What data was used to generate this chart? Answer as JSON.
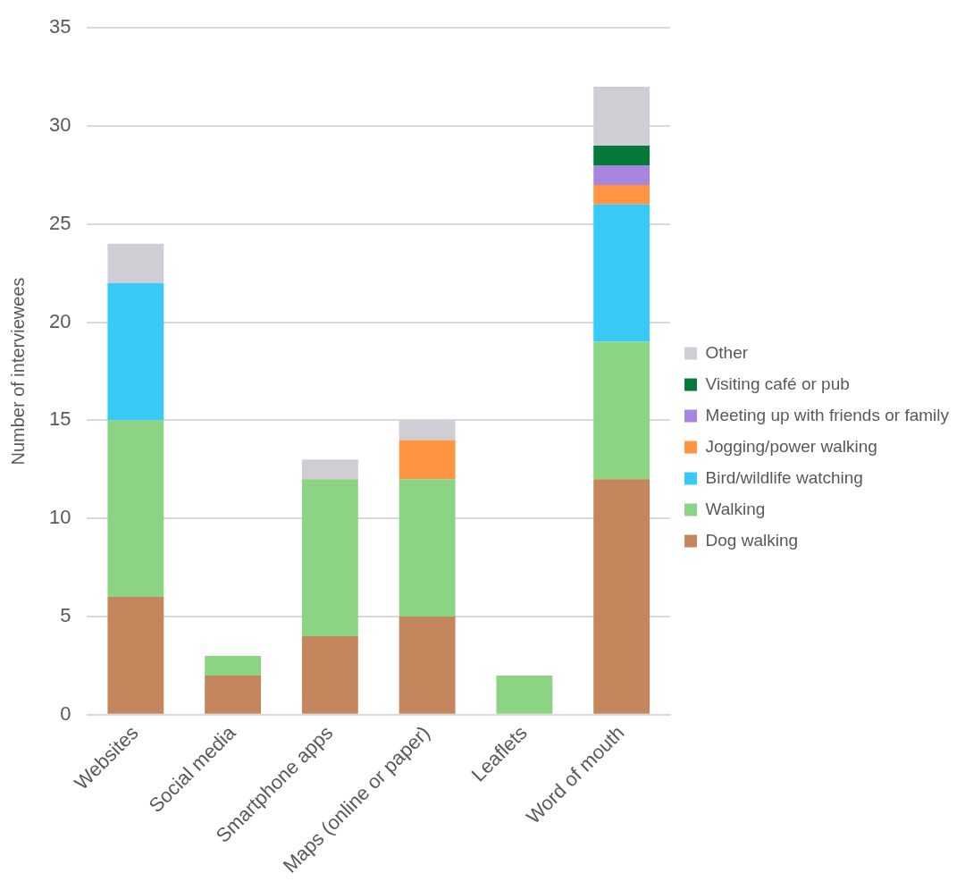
{
  "chart_data": {
    "type": "bar",
    "stacked": true,
    "ylabel": "Number of interviewees",
    "categories": [
      "Websites",
      "Social media",
      "Smartphone apps",
      "Maps (online or paper)",
      "Leaflets",
      "Word of mouth"
    ],
    "series": [
      {
        "name": "Dog walking",
        "color": "#c4865c",
        "values": [
          6,
          2,
          4,
          5,
          null,
          12
        ]
      },
      {
        "name": "Walking",
        "color": "#8dd384",
        "values": [
          9,
          1,
          8,
          7,
          2,
          7
        ]
      },
      {
        "name": "Bird/wildlife watching",
        "color": "#38c9f7",
        "values": [
          7,
          null,
          null,
          null,
          null,
          7
        ]
      },
      {
        "name": "Jogging/power walking",
        "color": "#fd9542",
        "values": [
          null,
          null,
          null,
          2,
          null,
          1
        ]
      },
      {
        "name": "Meeting up with friends or family",
        "color": "#a885de",
        "values": [
          null,
          null,
          null,
          null,
          null,
          1
        ]
      },
      {
        "name": "Visiting café or pub",
        "color": "#05793a",
        "values": [
          null,
          null,
          null,
          null,
          null,
          1
        ]
      },
      {
        "name": "Other",
        "color": "#d0cdd4",
        "values": [
          2,
          null,
          1,
          1,
          null,
          3
        ]
      }
    ],
    "ylim": [
      0,
      35
    ],
    "yticks": [
      0,
      5,
      10,
      15,
      20,
      25,
      30,
      35
    ],
    "grid": "y",
    "legend": "right"
  }
}
